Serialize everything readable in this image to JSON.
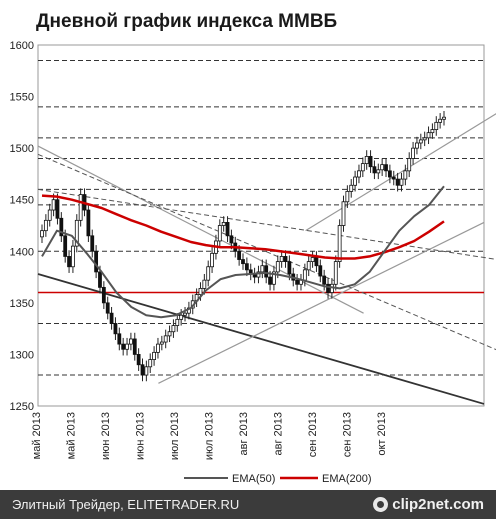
{
  "chart_data": {
    "type": "candlestick",
    "title": "Дневной график индекса ММВБ",
    "ylim": [
      1250,
      1600
    ],
    "yticks": [
      1250,
      1300,
      1350,
      1400,
      1450,
      1500,
      1550,
      1600
    ],
    "x_tick_labels": [
      "май 2013",
      "май 2013",
      "июн 2013",
      "июн 2013",
      "июл 2013",
      "июл 2013",
      "авг 2013",
      "авг 2013",
      "сен 2013",
      "сен 2013",
      "окт 2013"
    ],
    "close": [
      1420,
      1430,
      1440,
      1450,
      1432,
      1415,
      1395,
      1385,
      1405,
      1430,
      1455,
      1440,
      1415,
      1400,
      1380,
      1365,
      1350,
      1340,
      1330,
      1320,
      1310,
      1305,
      1310,
      1315,
      1300,
      1290,
      1280,
      1288,
      1295,
      1302,
      1310,
      1312,
      1318,
      1322,
      1328,
      1334,
      1338,
      1340,
      1345,
      1352,
      1358,
      1364,
      1372,
      1385,
      1398,
      1410,
      1425,
      1428,
      1415,
      1408,
      1400,
      1392,
      1388,
      1382,
      1378,
      1375,
      1380,
      1386,
      1375,
      1368,
      1380,
      1390,
      1395,
      1390,
      1378,
      1372,
      1368,
      1372,
      1382,
      1390,
      1394,
      1386,
      1376,
      1368,
      1360,
      1368,
      1390,
      1425,
      1448,
      1458,
      1464,
      1472,
      1478,
      1485,
      1492,
      1482,
      1476,
      1479,
      1484,
      1478,
      1472,
      1470,
      1464,
      1470,
      1478,
      1490,
      1500,
      1505,
      1508,
      1510,
      1515,
      1518,
      1525,
      1528,
      1530
    ],
    "ema_fast": {
      "name": "EMA(50)",
      "color": "#555555",
      "values": [
        1395,
        1420,
        1415,
        1398,
        1380,
        1360,
        1346,
        1338,
        1336,
        1338,
        1345,
        1362,
        1373,
        1377,
        1378,
        1379,
        1377,
        1374,
        1370,
        1366,
        1364,
        1368,
        1380,
        1400,
        1420,
        1434,
        1445,
        1463
      ]
    },
    "ema_slow": {
      "name": "EMA(200)",
      "color": "#cc0000",
      "values": [
        1454,
        1453,
        1450,
        1446,
        1442,
        1436,
        1430,
        1425,
        1419,
        1414,
        1409,
        1406,
        1404,
        1404,
        1403,
        1402,
        1400,
        1398,
        1396,
        1394,
        1393,
        1393,
        1395,
        1399,
        1404,
        1410,
        1419,
        1429
      ]
    },
    "legend": [
      "EMA(50)",
      "EMA(200)"
    ],
    "grid": "dashed horizontal levels",
    "horizontal_levels": [
      1280,
      1330,
      1360,
      1400,
      1445,
      1460,
      1490,
      1510,
      1540,
      1585
    ],
    "support_line_level": 1360,
    "trend_lines": [
      {
        "kind": "solid-dark",
        "from": [
          0,
          1378
        ],
        "to": [
          1,
          1252
        ]
      },
      {
        "kind": "solid-gray",
        "from": [
          0.27,
          1272
        ],
        "to": [
          1,
          1428
        ]
      },
      {
        "kind": "solid-gray",
        "from": [
          0.6,
          1420
        ],
        "to": [
          1.09,
          1550
        ]
      },
      {
        "kind": "solid-gray",
        "from": [
          0,
          1502
        ],
        "to": [
          0.73,
          1340
        ]
      },
      {
        "kind": "dashed",
        "from": [
          0,
          1494
        ],
        "to": [
          1.15,
          1282
        ]
      },
      {
        "kind": "dashed",
        "from": [
          0,
          1460
        ],
        "to": [
          1.06,
          1390
        ]
      }
    ]
  },
  "footer": {
    "left": "Элитный Трейдер, ELITETRADER.RU",
    "brand": "clip2net.com"
  }
}
